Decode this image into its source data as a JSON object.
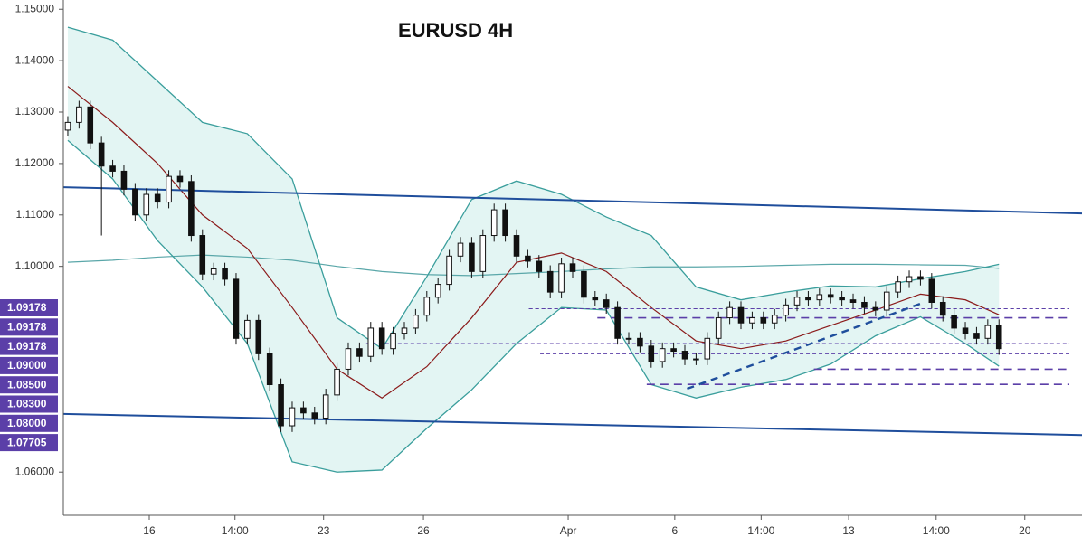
{
  "chart_data": {
    "type": "candlestick",
    "title": "EURUSD 4H",
    "xlim": [
      -0.4,
      90.4
    ],
    "ylim": [
      1.0516,
      1.1518
    ],
    "yticks": [
      {
        "value": 1.15,
        "label": "1.15000"
      },
      {
        "value": 1.14,
        "label": "1.14000"
      },
      {
        "value": 1.13,
        "label": "1.13000"
      },
      {
        "value": 1.12,
        "label": "1.12000"
      },
      {
        "value": 1.11,
        "label": "1.11000"
      },
      {
        "value": 1.1,
        "label": "1.10000"
      },
      {
        "value": 1.06,
        "label": "1.06000"
      }
    ],
    "xticks": [
      {
        "value": 7.26,
        "label": "16"
      },
      {
        "value": 14.9,
        "label": "14:00"
      },
      {
        "value": 22.8,
        "label": "23"
      },
      {
        "value": 31.7,
        "label": "26"
      },
      {
        "value": 44.6,
        "label": "Apr"
      },
      {
        "value": 54.1,
        "label": "6"
      },
      {
        "value": 61.8,
        "label": "14:00"
      },
      {
        "value": 69.6,
        "label": "13"
      },
      {
        "value": 77.4,
        "label": "14:00"
      },
      {
        "value": 85.3,
        "label": "20"
      }
    ],
    "up_color": "#ffffff",
    "down_color": "#111111",
    "open": [
      1.1265,
      1.128,
      1.131,
      1.124,
      1.1195,
      1.1185,
      1.115,
      1.11,
      1.114,
      1.1125,
      1.1175,
      1.1165,
      1.106,
      1.0985,
      1.0995,
      1.0975,
      1.086,
      1.0895,
      1.083,
      1.077,
      1.069,
      1.0725,
      1.0715,
      1.0705,
      1.075,
      1.08,
      1.084,
      1.0825,
      1.088,
      1.084,
      1.087,
      1.088,
      1.0905,
      1.094,
      1.0965,
      1.102,
      1.1045,
      1.099,
      1.106,
      1.111,
      1.106,
      1.102,
      1.101,
      1.099,
      1.095,
      1.1005,
      1.099,
      1.094,
      1.0935,
      1.092,
      1.086,
      1.086,
      1.0845,
      1.0815,
      1.084,
      1.0835,
      1.082,
      1.082,
      1.086,
      1.09,
      1.092,
      1.089,
      1.09,
      1.089,
      1.0905,
      1.0925,
      1.094,
      1.0935,
      1.0945,
      1.094,
      1.0935,
      1.093,
      1.092,
      1.0915,
      1.095,
      1.097,
      1.098,
      1.0975,
      1.093,
      1.0905,
      1.088,
      1.087,
      1.086,
      1.0885
    ],
    "high": [
      1.1292,
      1.1322,
      1.1322,
      1.1252,
      1.1207,
      1.1197,
      1.1162,
      1.1152,
      1.1152,
      1.1187,
      1.1187,
      1.1177,
      1.1072,
      1.1007,
      1.1007,
      1.0987,
      1.0907,
      1.0907,
      1.0842,
      1.0782,
      1.0737,
      1.0737,
      1.0727,
      1.0762,
      1.0812,
      1.0852,
      1.0852,
      1.0892,
      1.0892,
      1.0882,
      1.0892,
      1.0917,
      1.0952,
      1.0977,
      1.1032,
      1.1057,
      1.1057,
      1.1072,
      1.1122,
      1.1122,
      1.1072,
      1.1032,
      1.1022,
      1.1002,
      1.1017,
      1.1017,
      1.1002,
      1.0952,
      1.0947,
      1.0932,
      1.0872,
      1.0872,
      1.0857,
      1.0852,
      1.0852,
      1.0847,
      1.0832,
      1.0872,
      1.0912,
      1.0932,
      1.0932,
      1.0912,
      1.0912,
      1.0917,
      1.0937,
      1.0952,
      1.0952,
      1.0957,
      1.0957,
      1.0952,
      1.0947,
      1.0942,
      1.0932,
      1.0962,
      1.0982,
      1.0992,
      1.0992,
      1.0987,
      1.0942,
      1.0917,
      1.0892,
      1.0882,
      1.0897,
      1.0897
    ],
    "low": [
      1.1253,
      1.1268,
      1.1228,
      1.106,
      1.1173,
      1.1138,
      1.1088,
      1.1088,
      1.1113,
      1.1113,
      1.1153,
      1.1048,
      1.0973,
      1.0973,
      1.0963,
      1.0848,
      1.0848,
      1.0818,
      1.0758,
      1.0678,
      1.0678,
      1.0703,
      1.0693,
      1.0693,
      1.0738,
      1.0788,
      1.0813,
      1.0813,
      1.0828,
      1.0828,
      1.0858,
      1.0868,
      1.0893,
      1.0928,
      1.0953,
      1.1008,
      1.0978,
      1.0978,
      1.1048,
      1.1048,
      1.1008,
      1.0998,
      1.0978,
      1.0938,
      1.0938,
      1.0978,
      1.0928,
      1.0923,
      1.0908,
      1.0848,
      1.0848,
      1.0833,
      1.0803,
      1.0803,
      1.0823,
      1.0808,
      1.0808,
      1.0808,
      1.0848,
      1.0888,
      1.0878,
      1.0878,
      1.0878,
      1.0878,
      1.0893,
      1.0913,
      1.0923,
      1.0923,
      1.0928,
      1.0923,
      1.0918,
      1.0908,
      1.0903,
      1.0903,
      1.0938,
      1.0958,
      1.0963,
      1.0918,
      1.0893,
      1.0868,
      1.0858,
      1.0848,
      1.0848,
      1.0828
    ],
    "close": [
      1.128,
      1.131,
      1.124,
      1.1195,
      1.1185,
      1.115,
      1.11,
      1.114,
      1.1125,
      1.1175,
      1.1165,
      1.106,
      1.0985,
      1.0995,
      1.0975,
      1.086,
      1.0895,
      1.083,
      1.077,
      1.069,
      1.0725,
      1.0715,
      1.0705,
      1.075,
      1.08,
      1.084,
      1.0825,
      1.088,
      1.084,
      1.087,
      1.088,
      1.0905,
      1.094,
      1.0965,
      1.102,
      1.1045,
      1.099,
      1.106,
      1.111,
      1.106,
      1.102,
      1.101,
      1.099,
      1.095,
      1.1005,
      1.099,
      1.094,
      1.0935,
      1.092,
      1.086,
      1.086,
      1.0845,
      1.0815,
      1.084,
      1.0835,
      1.082,
      1.082,
      1.086,
      1.09,
      1.092,
      1.089,
      1.09,
      1.089,
      1.0905,
      1.0925,
      1.094,
      1.0935,
      1.0945,
      1.094,
      1.0935,
      1.093,
      1.092,
      1.0915,
      1.095,
      1.097,
      1.098,
      1.0975,
      1.093,
      1.0905,
      1.088,
      1.087,
      1.086,
      1.0885,
      1.084
    ],
    "bands": {
      "x": [
        0,
        4,
        8,
        12,
        16,
        20,
        24,
        28,
        32,
        36,
        40,
        44,
        48,
        52,
        56,
        60,
        64,
        68,
        72,
        76,
        80,
        83
      ],
      "fill": "#e3f5f3",
      "upper": [
        1.1465,
        1.144,
        1.136,
        1.128,
        1.1258,
        1.117,
        1.09,
        1.084,
        1.098,
        1.113,
        1.1166,
        1.114,
        1.1096,
        1.106,
        1.096,
        1.0935,
        1.095,
        1.0962,
        1.096,
        1.0976,
        1.099,
        1.1004
      ],
      "middle": [
        1.135,
        1.128,
        1.12,
        1.11,
        1.1035,
        1.092,
        1.08,
        1.0744,
        1.0805,
        1.09,
        1.1008,
        1.1026,
        1.099,
        1.092,
        1.0855,
        1.084,
        1.0855,
        1.0885,
        1.0915,
        1.0946,
        1.0935,
        1.0906
      ],
      "lower": [
        1.1245,
        1.117,
        1.105,
        1.096,
        1.085,
        1.062,
        1.06,
        1.0604,
        1.0685,
        1.076,
        1.085,
        1.092,
        1.0915,
        1.077,
        1.0744,
        1.0765,
        1.078,
        1.081,
        1.0865,
        1.0902,
        1.085,
        1.0806
      ],
      "long_ma": [
        1.1008,
        1.1012,
        1.1018,
        1.1022,
        1.1018,
        1.1012,
        1.1,
        1.099,
        1.0984,
        1.0982,
        1.0986,
        1.099,
        1.0995,
        1.0999,
        1.0999,
        1.1,
        1.1002,
        1.1004,
        1.1004,
        1.1003,
        1.1002,
        1.0996
      ],
      "band_color": "#3a9e9c",
      "middle_color": "#8b1a1a",
      "long_ma_color": "#5aa7a9"
    },
    "trendlines": [
      {
        "x": [
          -0.4,
          90.4
        ],
        "y": [
          1.1154,
          1.1103
        ],
        "color": "#1f4e9c",
        "dash": false
      },
      {
        "x": [
          -0.4,
          90.4
        ],
        "y": [
          1.0713,
          1.0672
        ],
        "color": "#1f4e9c",
        "dash": false
      },
      {
        "x": [
          55.2,
          76.2
        ],
        "y": [
          1.0762,
          1.0929
        ],
        "color": "#1f4e9c",
        "dash": true
      }
    ],
    "levels": [
      {
        "value": 1.09178,
        "label": "1.09178",
        "from": 41.1,
        "thick": false
      },
      {
        "value": 1.09178,
        "label": "1.09178",
        "from": 41.1,
        "thick": false
      },
      {
        "value": 1.09178,
        "label": "1.09178",
        "from": 41.1,
        "thick": false
      },
      {
        "value": 1.09,
        "label": "1.09000",
        "from": 47.2,
        "thick": true
      },
      {
        "value": 1.085,
        "label": "1.08500",
        "from": 26.6,
        "thick": false
      },
      {
        "value": 1.083,
        "label": "1.08300",
        "from": 42.1,
        "thick": false
      },
      {
        "value": 1.08,
        "label": "1.08000",
        "from": 66.5,
        "thick": true
      },
      {
        "value": 1.07705,
        "label": "1.07705",
        "from": 51.6,
        "thick": true
      }
    ],
    "level_color": "#5b3fa8"
  }
}
